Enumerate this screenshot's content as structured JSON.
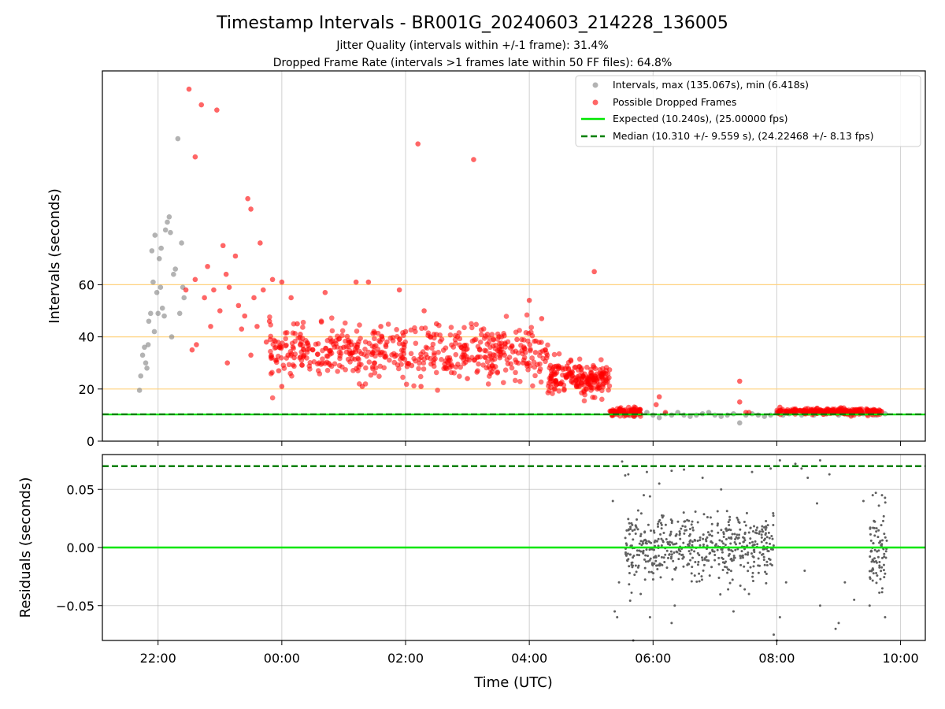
{
  "colors": {
    "background": "#ffffff",
    "axes": "#000000",
    "grid": "#b0b0b0",
    "threshold_lines": "#ffd27f",
    "intervals": "#808080",
    "dropped": "#ff0000",
    "expected": "#00e600",
    "median": "#007f00",
    "residuals": "#606060"
  },
  "chart_data": [
    {
      "type": "scatter",
      "title": "Timestamp Intervals - BR001G_20240603_214228_136005",
      "subtitle_lines": [
        "Jitter Quality (intervals within +/-1 frame): 31.4%",
        "Dropped Frame Rate (intervals >1 frames late within 50 FF files): 64.8%"
      ],
      "ylabel": "Intervals (seconds)",
      "xlim_hours": [
        -2.9,
        10.4
      ],
      "ylim": [
        0,
        142
      ],
      "yticks": [
        0,
        20,
        40,
        60
      ],
      "ytick_labels": [
        "0",
        "20",
        "40",
        "60"
      ],
      "threshold_lines_y": [
        20,
        40,
        60
      ],
      "grid": "vertical",
      "legend_position": "top-right",
      "legend": [
        {
          "label": "Intervals, max (135.067s), min (6.418s)",
          "marker": "dot",
          "color": "#808080"
        },
        {
          "label": "Possible Dropped Frames",
          "marker": "dot",
          "color": "#ff0000"
        },
        {
          "label": "Expected (10.240s), (25.00000 fps)",
          "marker": "line",
          "color": "#00e600"
        },
        {
          "label": "Median (10.310 +/- 9.559 s), (24.22468 +/- 8.13 fps)",
          "marker": "dashed",
          "color": "#007f00"
        }
      ],
      "expected_y": 10.24,
      "median_y": 10.31,
      "series": [
        {
          "name": "Intervals",
          "color": "#808080",
          "points": [
            [
              -2.3,
              19.5
            ],
            [
              -2.28,
              25
            ],
            [
              -2.25,
              33
            ],
            [
              -2.22,
              36
            ],
            [
              -2.2,
              30
            ],
            [
              -2.18,
              28
            ],
            [
              -2.15,
              46
            ],
            [
              -2.12,
              49
            ],
            [
              -2.1,
              73
            ],
            [
              -2.08,
              61
            ],
            [
              -2.05,
              79
            ],
            [
              -2.02,
              57
            ],
            [
              -2.0,
              49
            ],
            [
              -1.98,
              70
            ],
            [
              -1.95,
              74
            ],
            [
              -1.93,
              51
            ],
            [
              -1.9,
              48
            ],
            [
              -1.88,
              81
            ],
            [
              -1.85,
              84
            ],
            [
              -1.82,
              86
            ],
            [
              -1.8,
              80
            ],
            [
              -1.75,
              64
            ],
            [
              -1.72,
              66
            ],
            [
              -1.68,
              116
            ],
            [
              -1.62,
              76
            ],
            [
              -1.6,
              59
            ],
            [
              -1.65,
              49
            ],
            [
              -1.58,
              55
            ],
            [
              -2.16,
              37
            ],
            [
              -2.06,
              42
            ],
            [
              -1.96,
              59
            ],
            [
              -1.78,
              40
            ],
            [
              5.5,
              11
            ],
            [
              5.6,
              10
            ],
            [
              5.7,
              9.5
            ],
            [
              5.8,
              10.5
            ],
            [
              5.9,
              11
            ],
            [
              6.0,
              10
            ],
            [
              6.1,
              9
            ],
            [
              6.2,
              10.5
            ],
            [
              6.3,
              10
            ],
            [
              6.4,
              11
            ],
            [
              6.5,
              10
            ],
            [
              6.6,
              9.5
            ],
            [
              6.7,
              10
            ],
            [
              6.8,
              10.5
            ],
            [
              6.9,
              11
            ],
            [
              7.0,
              10
            ],
            [
              7.1,
              9.5
            ],
            [
              7.2,
              10
            ],
            [
              7.3,
              10.5
            ],
            [
              7.4,
              7
            ],
            [
              7.5,
              10
            ],
            [
              7.6,
              10.5
            ],
            [
              7.7,
              10
            ],
            [
              7.8,
              9.5
            ],
            [
              7.9,
              10
            ],
            [
              8.0,
              11
            ],
            [
              8.1,
              10
            ],
            [
              8.2,
              10.5
            ],
            [
              8.4,
              10
            ],
            [
              8.6,
              10
            ],
            [
              8.8,
              10.5
            ],
            [
              9.0,
              10
            ],
            [
              9.2,
              10
            ],
            [
              9.4,
              10.5
            ],
            [
              9.6,
              10
            ],
            [
              9.75,
              10.5
            ]
          ]
        },
        {
          "name": "Possible Dropped Frames",
          "color": "#ff0000",
          "points": [
            [
              -1.5,
              135
            ],
            [
              -1.4,
              109
            ],
            [
              -1.3,
              129
            ],
            [
              -1.05,
              127
            ],
            [
              -1.2,
              67
            ],
            [
              -0.95,
              75
            ],
            [
              -0.75,
              71
            ],
            [
              -0.55,
              93
            ],
            [
              -0.5,
              89
            ],
            [
              -0.35,
              76
            ],
            [
              -0.85,
              59
            ],
            [
              -0.9,
              64
            ],
            [
              -1.0,
              50
            ],
            [
              -1.1,
              58
            ],
            [
              -1.25,
              55
            ],
            [
              -1.4,
              62
            ],
            [
              -1.55,
              58
            ],
            [
              -0.7,
              52
            ],
            [
              -0.6,
              48
            ],
            [
              -0.45,
              55
            ],
            [
              -0.3,
              58
            ],
            [
              -0.2,
              46
            ],
            [
              -0.15,
              62
            ],
            [
              0.0,
              61
            ],
            [
              0.15,
              55
            ],
            [
              0.25,
              45
            ],
            [
              -1.45,
              35
            ],
            [
              -1.38,
              37
            ],
            [
              -1.15,
              44
            ],
            [
              -0.88,
              30
            ],
            [
              -0.65,
              43
            ],
            [
              -0.5,
              33
            ],
            [
              -0.4,
              44
            ],
            [
              -0.25,
              38
            ],
            [
              -0.1,
              31
            ],
            [
              -0.05,
              27
            ],
            [
              0.1,
              33
            ],
            [
              0.3,
              41
            ],
            [
              0.5,
              35
            ],
            [
              0.7,
              57
            ],
            [
              1.2,
              61
            ],
            [
              1.4,
              61
            ],
            [
              1.6,
              44
            ],
            [
              1.9,
              58
            ],
            [
              2.2,
              114
            ],
            [
              3.1,
              108
            ],
            [
              3.55,
              40
            ],
            [
              3.8,
              39
            ],
            [
              4.0,
              54
            ],
            [
              4.2,
              47
            ],
            [
              5.05,
              65
            ],
            [
              2.3,
              50
            ],
            [
              2.5,
              45
            ],
            [
              2.0,
              42
            ],
            [
              1.3,
              21
            ],
            [
              2.25,
              21
            ],
            [
              0.0,
              21
            ],
            [
              0.2,
              32
            ],
            [
              0.6,
              30
            ],
            [
              0.8,
              38
            ],
            [
              1.0,
              36
            ],
            [
              1.5,
              30
            ],
            [
              1.7,
              38
            ],
            [
              1.85,
              33
            ],
            [
              2.1,
              29
            ],
            [
              2.4,
              40
            ],
            [
              2.7,
              31
            ],
            [
              2.9,
              36
            ],
            [
              3.0,
              24
            ],
            [
              3.2,
              35
            ],
            [
              3.4,
              29
            ],
            [
              3.6,
              33
            ],
            [
              3.9,
              30
            ],
            [
              4.1,
              34
            ],
            [
              4.35,
              25
            ],
            [
              4.5,
              22
            ],
            [
              4.65,
              26
            ],
            [
              4.8,
              24
            ],
            [
              4.95,
              22
            ],
            [
              5.1,
              20
            ],
            [
              5.2,
              26
            ],
            [
              5.35,
              12
            ],
            [
              5.45,
              11
            ],
            [
              5.55,
              12
            ],
            [
              5.65,
              11.5
            ],
            [
              5.75,
              12
            ],
            [
              6.05,
              14
            ],
            [
              6.1,
              17
            ],
            [
              6.2,
              11
            ],
            [
              7.4,
              23
            ],
            [
              7.4,
              15
            ],
            [
              7.5,
              11
            ],
            [
              7.55,
              11
            ],
            [
              8.05,
              13
            ],
            [
              8.3,
              12
            ],
            [
              8.5,
              12.5
            ],
            [
              8.7,
              12
            ],
            [
              8.9,
              11.5
            ],
            [
              9.1,
              12
            ],
            [
              9.3,
              11.5
            ],
            [
              9.5,
              11
            ],
            [
              9.6,
              11.5
            ]
          ]
        }
      ]
    },
    {
      "type": "scatter",
      "xlabel": "Time (UTC)",
      "ylabel": "Residuals (seconds)",
      "xlim_hours": [
        -2.9,
        10.4
      ],
      "ylim": [
        -0.08,
        0.08
      ],
      "yticks": [
        -0.05,
        0.0,
        0.05
      ],
      "ytick_labels": [
        "−0.05",
        "0.00",
        "0.05"
      ],
      "xticks_hours": [
        -2,
        0,
        2,
        4,
        6,
        8,
        10
      ],
      "xtick_labels": [
        "22:00",
        "00:00",
        "02:00",
        "04:00",
        "06:00",
        "08:00",
        "10:00"
      ],
      "grid": "both",
      "expected_y": 0.0,
      "median_y": 0.07,
      "points": [
        [
          5.35,
          0.04
        ],
        [
          5.38,
          -0.055
        ],
        [
          5.42,
          -0.06
        ],
        [
          5.45,
          -0.03
        ],
        [
          5.5,
          0.074
        ],
        [
          5.55,
          0.062
        ],
        [
          5.6,
          0.063
        ],
        [
          5.62,
          -0.022
        ],
        [
          5.68,
          -0.08
        ],
        [
          5.85,
          0.045
        ],
        [
          5.9,
          0.065
        ],
        [
          5.95,
          0.044
        ],
        [
          6.1,
          0.055
        ],
        [
          6.3,
          0.066
        ],
        [
          6.5,
          0.067
        ],
        [
          6.8,
          0.06
        ],
        [
          7.1,
          0.05
        ],
        [
          7.6,
          0.065
        ],
        [
          7.9,
          0.068
        ],
        [
          8.05,
          0.075
        ],
        [
          8.3,
          0.072
        ],
        [
          8.4,
          0.068
        ],
        [
          8.5,
          0.06
        ],
        [
          8.7,
          0.075
        ],
        [
          8.85,
          0.063
        ],
        [
          8.65,
          0.038
        ],
        [
          9.4,
          0.04
        ],
        [
          9.55,
          0.045
        ],
        [
          9.6,
          0.047
        ],
        [
          9.65,
          0.036
        ],
        [
          9.7,
          0.045
        ],
        [
          5.6,
          -0.01
        ],
        [
          5.8,
          -0.04
        ],
        [
          5.95,
          -0.06
        ],
        [
          6.3,
          -0.065
        ],
        [
          6.35,
          -0.05
        ],
        [
          7.3,
          -0.055
        ],
        [
          7.55,
          -0.04
        ],
        [
          7.95,
          -0.075
        ],
        [
          8.05,
          -0.06
        ],
        [
          8.15,
          -0.03
        ],
        [
          8.0,
          -0.08
        ],
        [
          8.45,
          -0.02
        ],
        [
          8.7,
          -0.05
        ],
        [
          8.95,
          -0.07
        ],
        [
          9.0,
          -0.065
        ],
        [
          9.1,
          -0.03
        ],
        [
          9.25,
          -0.045
        ],
        [
          9.5,
          -0.05
        ],
        [
          9.75,
          -0.06
        ]
      ],
      "dense_clusters": [
        {
          "x_range": [
            5.55,
            7.95
          ],
          "y_center": 0.0,
          "y_spread": 0.025,
          "count": 520
        },
        {
          "x_range": [
            9.5,
            9.78
          ],
          "y_center": 0.0,
          "y_spread": 0.03,
          "count": 80
        }
      ]
    }
  ]
}
